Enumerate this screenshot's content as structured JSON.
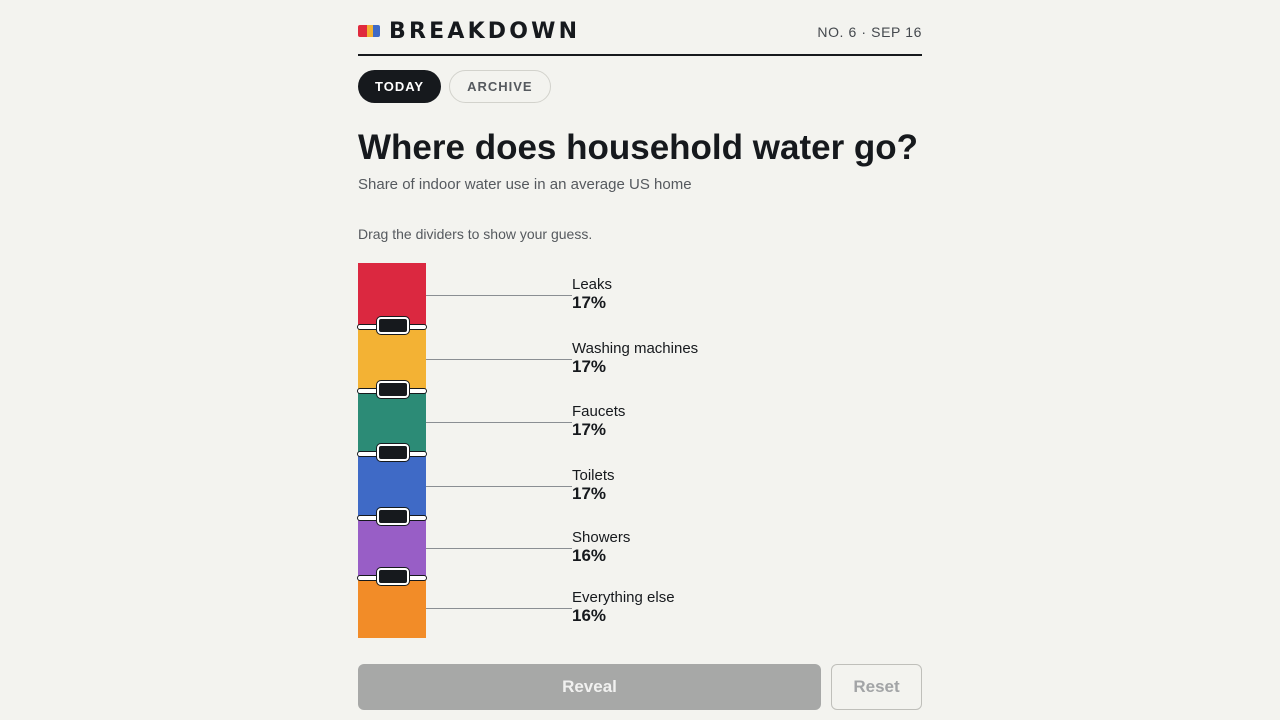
{
  "header": {
    "logo_text": "BREAKDOWN",
    "issue": "NO. 6 · SEP 16",
    "logo_colors": [
      "#e02a3d",
      "#f2b233",
      "#3f6ac6"
    ]
  },
  "tabs": [
    {
      "label": "TODAY",
      "active": true
    },
    {
      "label": "ARCHIVE",
      "active": false
    }
  ],
  "question": {
    "title": "Where does household water go?",
    "subtitle": "Share of indoor water use in an average US home",
    "instruction": "Drag the dividers to show your guess."
  },
  "categories": [
    {
      "name": "Leaks",
      "percent_label": "17%",
      "value": 17,
      "color": "#db2840"
    },
    {
      "name": "Washing machines",
      "percent_label": "17%",
      "value": 17,
      "color": "#f3b234"
    },
    {
      "name": "Faucets",
      "percent_label": "17%",
      "value": 17,
      "color": "#2c8b76"
    },
    {
      "name": "Toilets",
      "percent_label": "17%",
      "value": 17,
      "color": "#3f6ac6"
    },
    {
      "name": "Showers",
      "percent_label": "16%",
      "value": 16,
      "color": "#985ec6"
    },
    {
      "name": "Everything else",
      "percent_label": "16%",
      "value": 16,
      "color": "#f28c28"
    }
  ],
  "buttons": {
    "reveal": "Reveal",
    "reset": "Reset"
  }
}
